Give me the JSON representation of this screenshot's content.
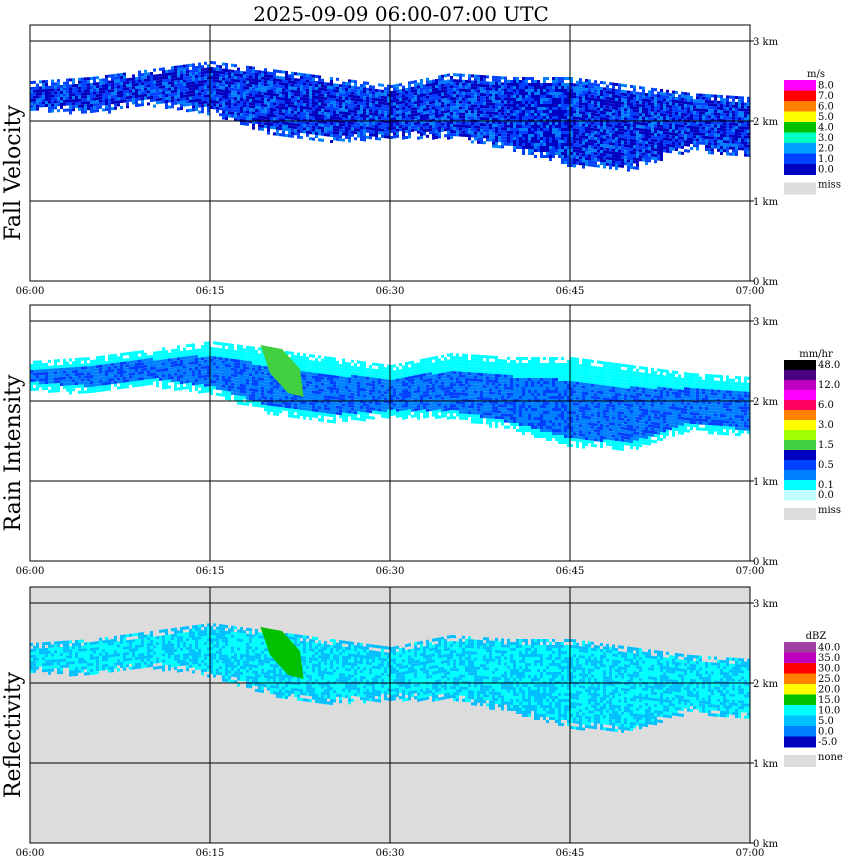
{
  "title": "2025-09-09   06:00-07:00 UTC",
  "chart_data": [
    {
      "type": "heatmap",
      "ylabel": "Fall Velocity",
      "units": "m/s",
      "x_ticks": [
        "06:00",
        "06:15",
        "06:30",
        "06:45",
        "07:00"
      ],
      "y_ticks": [
        "0 km",
        "1 km",
        "2 km",
        "3 km"
      ],
      "ylim_km": [
        0,
        3.2
      ],
      "legend": [
        {
          "label": "8.0",
          "color": "#ff00ff"
        },
        {
          "label": "7.0",
          "color": "#ff0000"
        },
        {
          "label": "6.0",
          "color": "#ff8000"
        },
        {
          "label": "5.0",
          "color": "#ffff00"
        },
        {
          "label": "4.0",
          "color": "#00c000"
        },
        {
          "label": "3.0",
          "color": "#00ffc0"
        },
        {
          "label": "2.0",
          "color": "#00a0ff"
        },
        {
          "label": "1.0",
          "color": "#0040ff"
        },
        {
          "label": "0.0",
          "color": "#0000c0"
        }
      ],
      "miss_label": "miss",
      "miss_color": "#dcdcdc",
      "band": [
        [
          0,
          2.5,
          2.15
        ],
        [
          5,
          2.55,
          2.1
        ],
        [
          10,
          2.65,
          2.2
        ],
        [
          15,
          2.75,
          2.1
        ],
        [
          20,
          2.65,
          1.85
        ],
        [
          25,
          2.55,
          1.75
        ],
        [
          30,
          2.45,
          1.8
        ],
        [
          35,
          2.6,
          1.8
        ],
        [
          40,
          2.55,
          1.65
        ],
        [
          45,
          2.55,
          1.45
        ],
        [
          50,
          2.45,
          1.4
        ],
        [
          55,
          2.35,
          1.65
        ],
        [
          60,
          2.3,
          1.55
        ]
      ],
      "fill_colors": [
        "#0000c0",
        "#0040ff",
        "#0080ff",
        "#0040ff"
      ]
    },
    {
      "type": "heatmap",
      "ylabel": "Rain Intensity",
      "units": "mm/hr",
      "x_ticks": [
        "06:00",
        "06:15",
        "06:30",
        "06:45",
        "07:00"
      ],
      "y_ticks": [
        "0 km",
        "1 km",
        "2 km",
        "3 km"
      ],
      "ylim_km": [
        0,
        3.2
      ],
      "legend": [
        {
          "label": "48.0",
          "color": "#000000"
        },
        {
          "label": "",
          "color": "#4b0082"
        },
        {
          "label": "12.0",
          "color": "#c000c0"
        },
        {
          "label": "",
          "color": "#ff00ff"
        },
        {
          "label": "6.0",
          "color": "#ff0060"
        },
        {
          "label": "",
          "color": "#ff8000"
        },
        {
          "label": "3.0",
          "color": "#ffff00"
        },
        {
          "label": "",
          "color": "#a0ff00"
        },
        {
          "label": "1.5",
          "color": "#40d040"
        },
        {
          "label": "",
          "color": "#0000c0"
        },
        {
          "label": "0.5",
          "color": "#0040ff"
        },
        {
          "label": "",
          "color": "#0080ff"
        },
        {
          "label": "0.1",
          "color": "#00ffff"
        },
        {
          "label": "0.0",
          "color": "#c0ffff"
        }
      ],
      "miss_label": "miss",
      "miss_color": "#dcdcdc",
      "band": [
        [
          0,
          2.5,
          2.15
        ],
        [
          5,
          2.55,
          2.1
        ],
        [
          10,
          2.65,
          2.2
        ],
        [
          15,
          2.75,
          2.1
        ],
        [
          20,
          2.65,
          1.85
        ],
        [
          25,
          2.55,
          1.75
        ],
        [
          30,
          2.45,
          1.8
        ],
        [
          35,
          2.6,
          1.8
        ],
        [
          40,
          2.55,
          1.65
        ],
        [
          45,
          2.55,
          1.45
        ],
        [
          50,
          2.45,
          1.4
        ],
        [
          55,
          2.35,
          1.65
        ],
        [
          60,
          2.3,
          1.55
        ]
      ],
      "fill_colors": [
        "#0080ff",
        "#00ffff",
        "#0040ff",
        "#0080ff"
      ]
    },
    {
      "type": "heatmap",
      "ylabel": "Reflectivity",
      "units": "dBZ",
      "x_ticks": [
        "06:00",
        "06:15",
        "06:30",
        "06:45",
        "07:00"
      ],
      "y_ticks": [
        "0 km",
        "1 km",
        "2 km",
        "3 km"
      ],
      "ylim_km": [
        0,
        3.2
      ],
      "legend": [
        {
          "label": "40.0",
          "color": "#a040a0"
        },
        {
          "label": "35.0",
          "color": "#c000c0"
        },
        {
          "label": "30.0",
          "color": "#ff0000"
        },
        {
          "label": "25.0",
          "color": "#ff8000"
        },
        {
          "label": "20.0",
          "color": "#ffff00"
        },
        {
          "label": "15.0",
          "color": "#00c000"
        },
        {
          "label": "10.0",
          "color": "#00ffff"
        },
        {
          "label": "5.0",
          "color": "#00c0ff"
        },
        {
          "label": "0.0",
          "color": "#0080ff"
        },
        {
          "label": "-5.0",
          "color": "#0000c0"
        }
      ],
      "miss_label": "none",
      "miss_color": "#dcdcdc",
      "band": [
        [
          0,
          2.5,
          2.15
        ],
        [
          5,
          2.55,
          2.1
        ],
        [
          10,
          2.65,
          2.2
        ],
        [
          15,
          2.75,
          2.1
        ],
        [
          20,
          2.65,
          1.85
        ],
        [
          25,
          2.55,
          1.75
        ],
        [
          30,
          2.45,
          1.8
        ],
        [
          35,
          2.6,
          1.8
        ],
        [
          40,
          2.55,
          1.65
        ],
        [
          45,
          2.55,
          1.45
        ],
        [
          50,
          2.45,
          1.4
        ],
        [
          55,
          2.35,
          1.65
        ],
        [
          60,
          2.3,
          1.55
        ]
      ],
      "fill_colors": [
        "#00ffff",
        "#00c0ff",
        "#00e0ff",
        "#00ffff"
      ]
    }
  ]
}
